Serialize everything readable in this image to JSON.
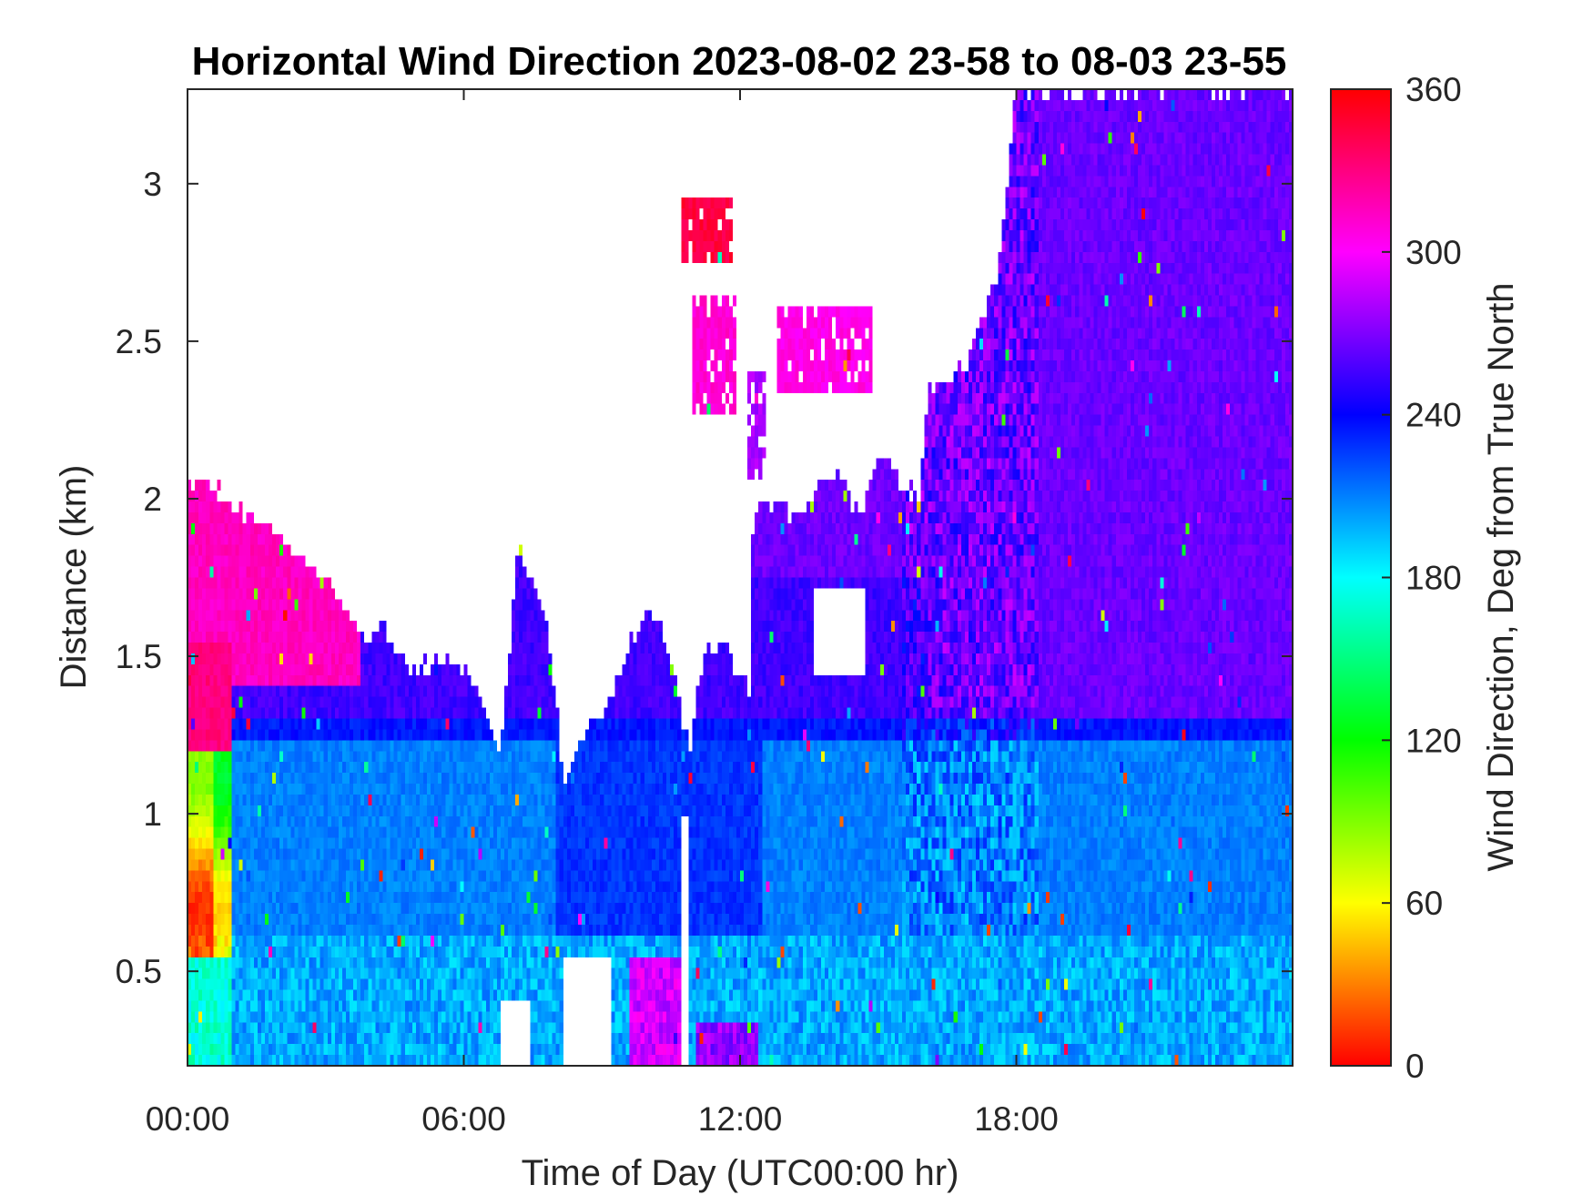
{
  "chart_data": {
    "type": "heatmap",
    "title": "Horizontal Wind Direction 2023-08-02 23-58 to 08-03 23-55",
    "xlabel": "Time of Day (UTC00:00 hr)",
    "ylabel": "Distance (km)",
    "xlim": [
      0,
      24
    ],
    "ylim": [
      0.2,
      3.3
    ],
    "x_ticks": [
      {
        "value": 0,
        "label": "00:00"
      },
      {
        "value": 6,
        "label": "06:00"
      },
      {
        "value": 12,
        "label": "12:00"
      },
      {
        "value": 18,
        "label": "18:00"
      }
    ],
    "y_ticks": [
      {
        "value": 0.5,
        "label": "0.5"
      },
      {
        "value": 1,
        "label": "1"
      },
      {
        "value": 1.5,
        "label": "1.5"
      },
      {
        "value": 2,
        "label": "2"
      },
      {
        "value": 2.5,
        "label": "2.5"
      },
      {
        "value": 3,
        "label": "3"
      }
    ],
    "colorbar": {
      "label": "Wind Direction, Deg from True North",
      "range": [
        0,
        360
      ],
      "colormap": "hsv",
      "ticks": [
        {
          "value": 0,
          "label": "0"
        },
        {
          "value": 60,
          "label": "60"
        },
        {
          "value": 120,
          "label": "120"
        },
        {
          "value": 180,
          "label": "180"
        },
        {
          "value": 240,
          "label": "240"
        },
        {
          "value": 300,
          "label": "300"
        },
        {
          "value": 360,
          "label": "360"
        }
      ]
    },
    "field": {
      "note_values": "approximate wind direction (deg) by time and height",
      "nx": 300,
      "ny": 90,
      "missing_color": "#ffffff",
      "top_profile": [
        [
          0,
          2.05
        ],
        [
          0.5,
          2.05
        ],
        [
          1.2,
          1.95
        ],
        [
          2.3,
          1.85
        ],
        [
          3.4,
          1.68
        ],
        [
          3.8,
          1.55
        ],
        [
          4.3,
          1.6
        ],
        [
          4.8,
          1.45
        ],
        [
          5.7,
          1.5
        ],
        [
          6.2,
          1.42
        ],
        [
          6.8,
          1.2
        ],
        [
          7.2,
          1.85
        ],
        [
          7.8,
          1.6
        ],
        [
          8.2,
          1.1
        ],
        [
          8.8,
          1.3
        ],
        [
          9.3,
          1.4
        ],
        [
          9.6,
          1.55
        ],
        [
          10.1,
          1.65
        ],
        [
          10.5,
          1.5
        ],
        [
          10.9,
          1.2
        ],
        [
          11.2,
          1.5
        ],
        [
          11.6,
          1.55
        ],
        [
          12.2,
          1.4
        ],
        [
          12.3,
          2.0
        ],
        [
          13.2,
          1.95
        ],
        [
          14.1,
          2.1
        ],
        [
          14.6,
          1.95
        ],
        [
          15.0,
          2.15
        ],
        [
          15.5,
          2.05
        ],
        [
          15.9,
          2.0
        ],
        [
          16.1,
          2.35
        ],
        [
          17.0,
          2.45
        ],
        [
          17.6,
          2.7
        ],
        [
          18.0,
          3.3
        ],
        [
          24,
          3.3
        ]
      ],
      "upper_patches": [
        {
          "t0": 10.7,
          "t1": 11.8,
          "z0": 2.75,
          "z1": 2.95,
          "value": 345
        },
        {
          "t0": 11.0,
          "t1": 11.9,
          "z0": 2.25,
          "z1": 2.65,
          "value": 310
        },
        {
          "t0": 12.8,
          "t1": 14.9,
          "z0": 2.35,
          "z1": 2.6,
          "value": 305
        },
        {
          "t0": 12.2,
          "t1": 12.6,
          "z0": 2.05,
          "z1": 2.4,
          "value": 280
        }
      ],
      "gaps": [
        {
          "t0": 13.6,
          "t1": 14.7,
          "z0": 1.45,
          "z1": 1.72
        },
        {
          "t0": 8.2,
          "t1": 9.2,
          "z0": 0.2,
          "z1": 0.55
        },
        {
          "t0": 6.8,
          "t1": 7.4,
          "z0": 0.2,
          "z1": 0.42
        },
        {
          "t0": 10.7,
          "t1": 10.85,
          "z0": 0.2,
          "z1": 1.0
        }
      ]
    }
  }
}
